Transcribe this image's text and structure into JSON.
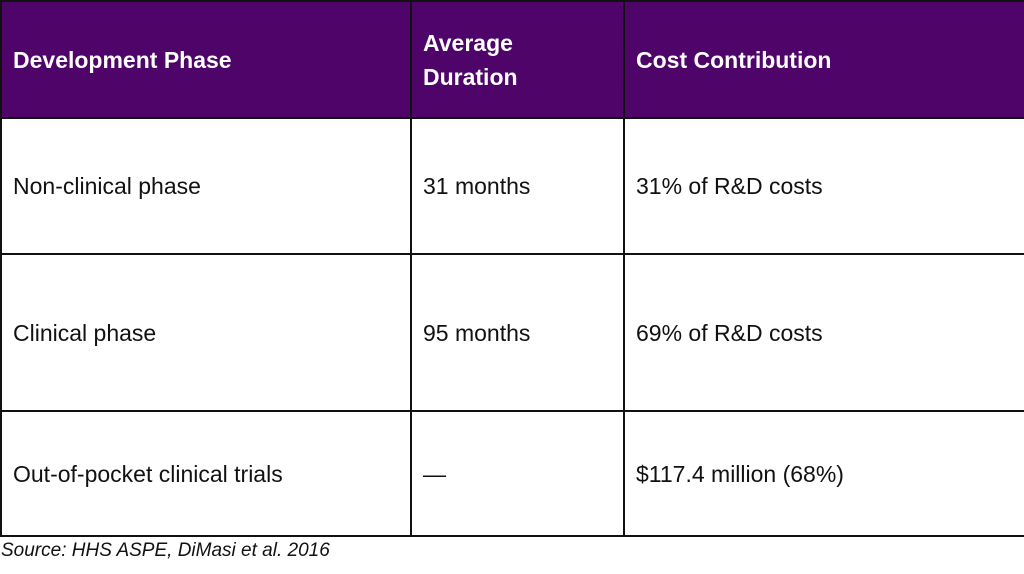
{
  "table": {
    "headers": [
      "Development Phase",
      "Average Duration",
      "Cost Contribution"
    ],
    "rows": [
      [
        "Non-clinical phase",
        "31 months",
        "31% of R&D costs"
      ],
      [
        "Clinical phase",
        "95 months",
        "69% of R&D costs"
      ],
      [
        "Out-of-pocket clinical trials",
        "—",
        "$117.4 million (68%)"
      ]
    ]
  },
  "source": "Source: HHS ASPE, DiMasi et al. 2016",
  "colors": {
    "header_background": "#4e0468",
    "header_text": "#ffffff",
    "border": "#111111"
  }
}
